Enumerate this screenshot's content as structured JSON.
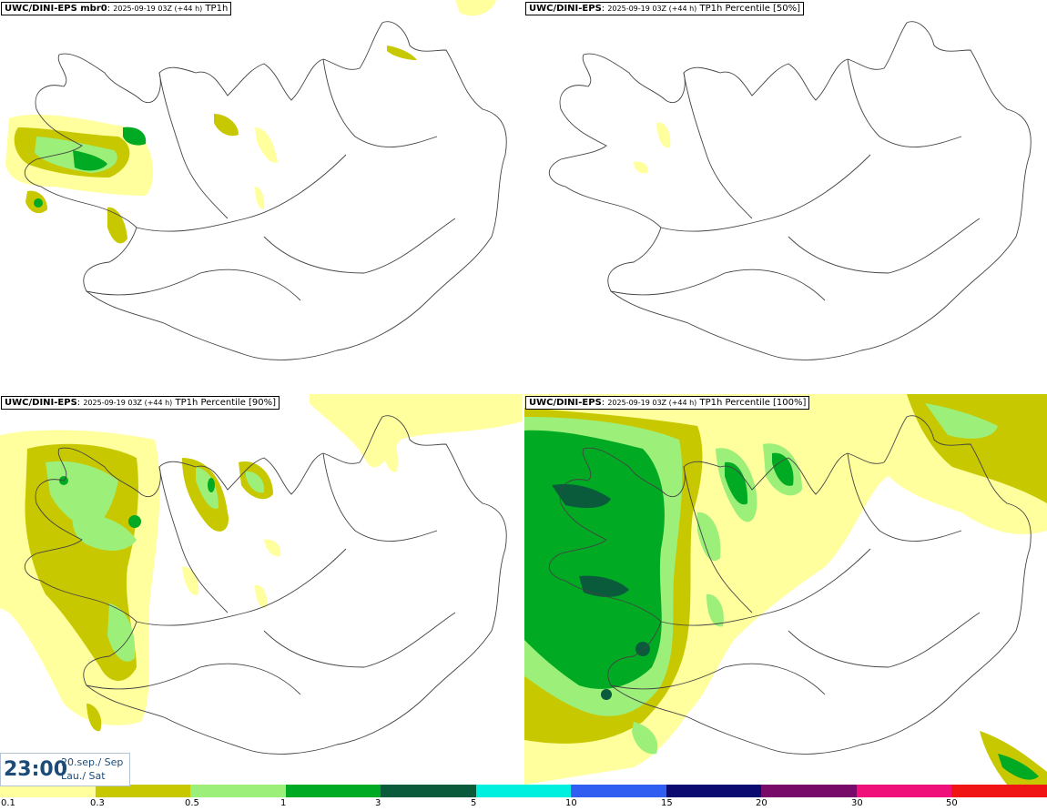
{
  "panels": [
    {
      "model": "UWC/DINI-EPS mbr0",
      "run": "2025-09-19 03Z (+44 h)",
      "field": "TP1h"
    },
    {
      "model": "UWC/DINI-EPS",
      "run": "2025-09-19 03Z (+44 h)",
      "field": "TP1h Percentile [50%]"
    },
    {
      "model": "UWC/DINI-EPS",
      "run": "2025-09-19 03Z (+44 h)",
      "field": "TP1h Percentile [90%]"
    },
    {
      "model": "UWC/DINI-EPS",
      "run": "2025-09-19 03Z (+44 h)",
      "field": "TP1h Percentile [100%]"
    }
  ],
  "valid_time": {
    "time": "23:00",
    "date_line1": "20.sep./ Sep",
    "date_line2": "Lau./ Sat"
  },
  "legend": {
    "ticks": [
      "0.1",
      "0.3",
      "0.5",
      "1",
      "3",
      "5",
      "10",
      "15",
      "20",
      "30",
      "50"
    ],
    "colors": [
      "#ffff9e",
      "#c8c800",
      "#9cf07a",
      "#00aa22",
      "#0a5a3c",
      "#00f0e0",
      "#2f5ef0",
      "#0a0a70",
      "#780a6a",
      "#f0107a",
      "#f01414"
    ]
  }
}
